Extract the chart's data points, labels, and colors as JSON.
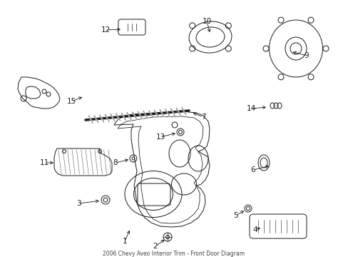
{
  "title": "2006 Chevy Aveo Interior Trim - Front Door Diagram",
  "bg_color": "#ffffff",
  "fig_width": 4.89,
  "fig_height": 3.6,
  "dpi": 100,
  "line_color": "#1a1a1a",
  "label_color": "#111111"
}
